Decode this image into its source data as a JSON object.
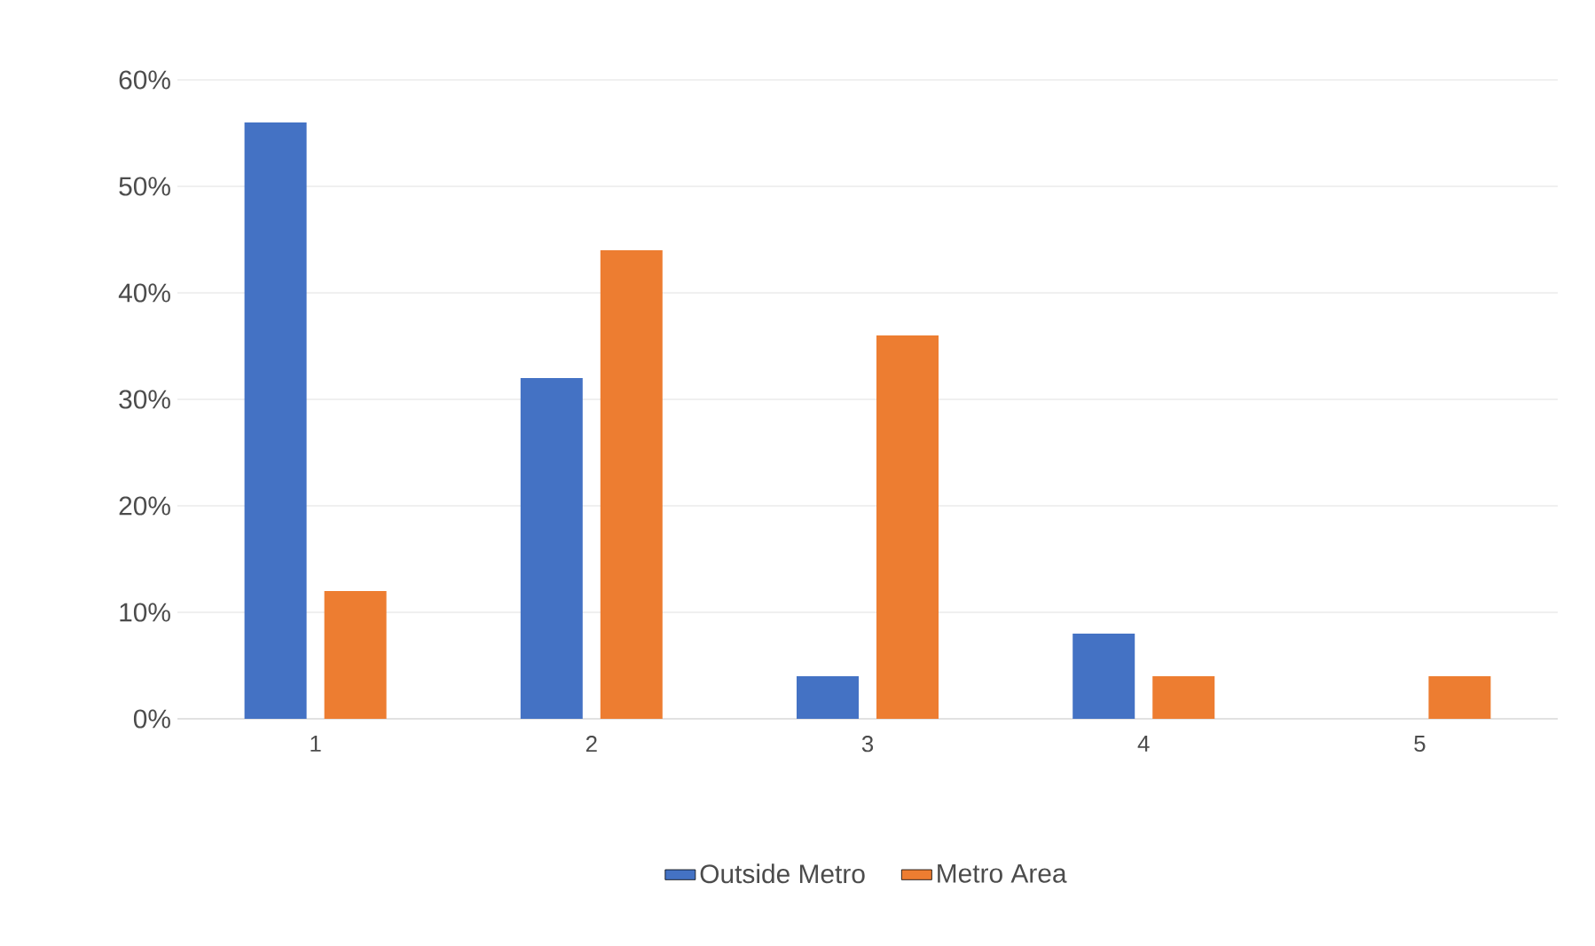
{
  "chart_data": {
    "type": "bar",
    "categories": [
      "1",
      "2",
      "3",
      "4",
      "5"
    ],
    "series": [
      {
        "name": "Outside Metro",
        "color": "#4472c4",
        "values": [
          56,
          32,
          4,
          8,
          0
        ]
      },
      {
        "name": "Metro Area",
        "color": "#ed7d31",
        "values": [
          12,
          44,
          36,
          4,
          4
        ]
      }
    ],
    "ylim": [
      0,
      60
    ],
    "yticks": [
      {
        "value": 0,
        "label": "0%"
      },
      {
        "value": 10,
        "label": "10%"
      },
      {
        "value": 20,
        "label": "20%"
      },
      {
        "value": 30,
        "label": "30%"
      },
      {
        "value": 40,
        "label": "40%"
      },
      {
        "value": 50,
        "label": "50%"
      },
      {
        "value": 60,
        "label": "60%"
      }
    ],
    "grid": "y",
    "legend": "bottom"
  }
}
